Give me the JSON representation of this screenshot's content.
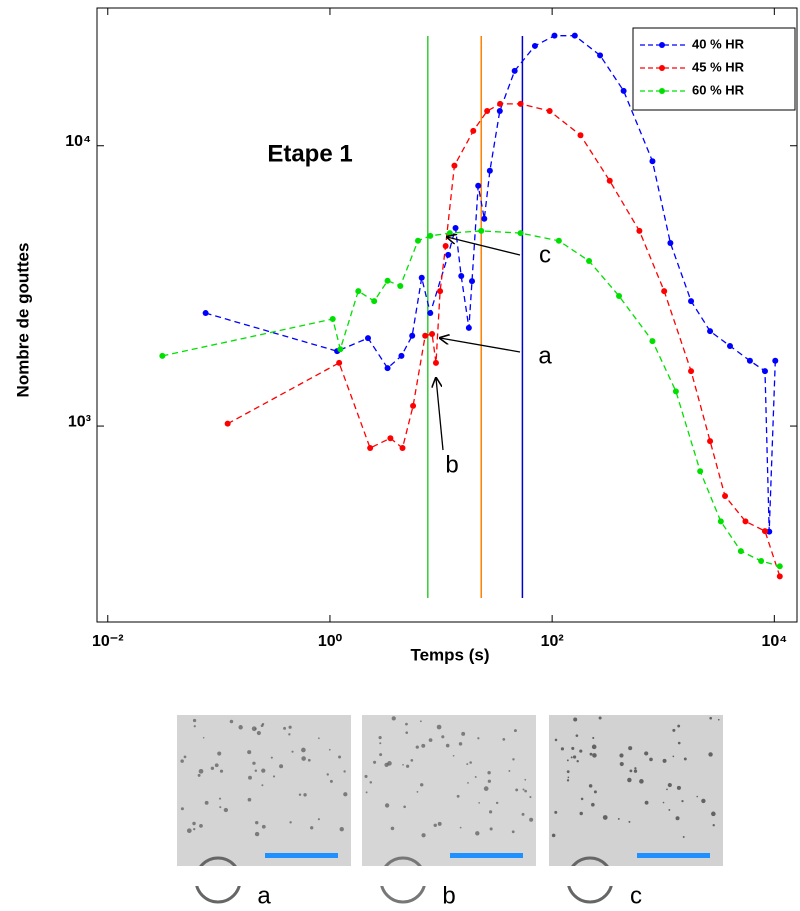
{
  "chart_data": {
    "type": "line",
    "xlabel": "Temps (s)",
    "ylabel": "Nombre de gouttes",
    "xscale": "log",
    "yscale": "log",
    "xlim": [
      0.008,
      16000
    ],
    "ylim": [
      200,
      31000
    ],
    "xticks": [
      {
        "value": 0.01,
        "label": "10⁻²"
      },
      {
        "value": 1,
        "label": "10⁰"
      },
      {
        "value": 100,
        "label": "10²"
      },
      {
        "value": 10000,
        "label": "10⁴"
      }
    ],
    "yticks": [
      {
        "value": 1000,
        "label": "10³"
      },
      {
        "value": 10000,
        "label": "10⁴"
      }
    ],
    "grid": false,
    "legend": "upper right",
    "series": [
      {
        "name": "40 % HR",
        "color": "#0000ff",
        "x": [
          0.076,
          1.16,
          2.2,
          3.3,
          4.4,
          5.5,
          6.7,
          8.0,
          11.6,
          13.5,
          15.2,
          17.8,
          19.0,
          21.6,
          24.5,
          27.5,
          33.8,
          46,
          70,
          105,
          160,
          270,
          440,
          800,
          1160,
          1780,
          2640,
          3990,
          6030,
          8240,
          9000,
          10200
        ],
        "values": [
          2530,
          1850,
          2060,
          1610,
          1780,
          2100,
          3380,
          2530,
          4080,
          5090,
          3430,
          2240,
          3290,
          7200,
          5490,
          8140,
          13300,
          18500,
          22700,
          24700,
          24700,
          21000,
          15700,
          8800,
          4500,
          2790,
          2180,
          1930,
          1710,
          1570,
          420,
          1710
        ]
      },
      {
        "name": "45 % HR",
        "color": "#ff0000",
        "x": [
          0.12,
          1.21,
          2.3,
          3.5,
          4.5,
          5.6,
          7.2,
          8.3,
          9.0,
          9.8,
          11.0,
          13.2,
          19.5,
          26,
          34,
          52,
          95,
          180,
          330,
          610,
          1020,
          1780,
          2640,
          3600,
          5500,
          8240,
          11200
        ],
        "values": [
          1020,
          1680,
          835,
          905,
          835,
          1180,
          2100,
          2130,
          1680,
          3030,
          4390,
          8490,
          11300,
          13300,
          14100,
          14100,
          13300,
          10900,
          7500,
          4970,
          3030,
          1570,
          884,
          563,
          457,
          422,
          291
        ]
      },
      {
        "name": "60 % HR",
        "color": "#00e000",
        "x": [
          0.031,
          1.06,
          1.24,
          1.8,
          2.5,
          3.3,
          4.3,
          6.2,
          8.0,
          12,
          23,
          52,
          115,
          215,
          400,
          800,
          1300,
          2150,
          3300,
          5000,
          7600,
          11200
        ],
        "values": [
          1780,
          2410,
          1880,
          3030,
          2790,
          3300,
          3160,
          4580,
          4770,
          4880,
          4970,
          4880,
          4580,
          3880,
          2910,
          2010,
          1330,
          690,
          457,
          358,
          330,
          316
        ]
      }
    ],
    "vlines": [
      {
        "x": 7.6,
        "color": "#33cc33"
      },
      {
        "x": 23,
        "color": "#ff8000"
      },
      {
        "x": 54,
        "color": "#0000cc"
      }
    ],
    "annotations": [
      "Etape 1",
      "a",
      "b",
      "c"
    ]
  },
  "image_labels": [
    "a",
    "b",
    "c"
  ]
}
